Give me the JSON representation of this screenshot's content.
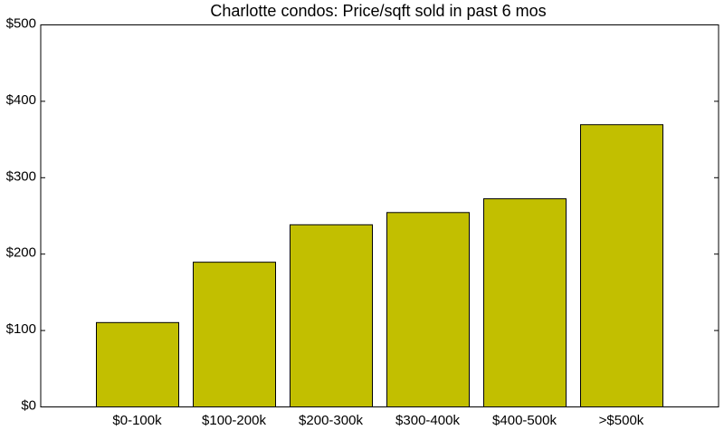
{
  "chart_data": {
    "type": "bar",
    "title": "Charlotte condos: Price/sqft sold in past 6 mos",
    "xlabel": "",
    "ylabel": "",
    "categories": [
      "$0-100k",
      "$100-200k",
      "$200-300k",
      "$300-400k",
      "$400-500k",
      ">$500k"
    ],
    "values": [
      111,
      190,
      239,
      255,
      273,
      370
    ],
    "ylim": [
      0,
      500
    ],
    "yticks": [
      0,
      100,
      200,
      300,
      400,
      500
    ],
    "ytick_labels": [
      "$0",
      "$100",
      "$200",
      "$300",
      "$400",
      "$500"
    ],
    "grid": false,
    "legend": "none",
    "colors": {
      "bar_fill": "#c2bf00",
      "bar_stroke": "#000000",
      "axis": "#000000",
      "background": "#ffffff"
    }
  }
}
